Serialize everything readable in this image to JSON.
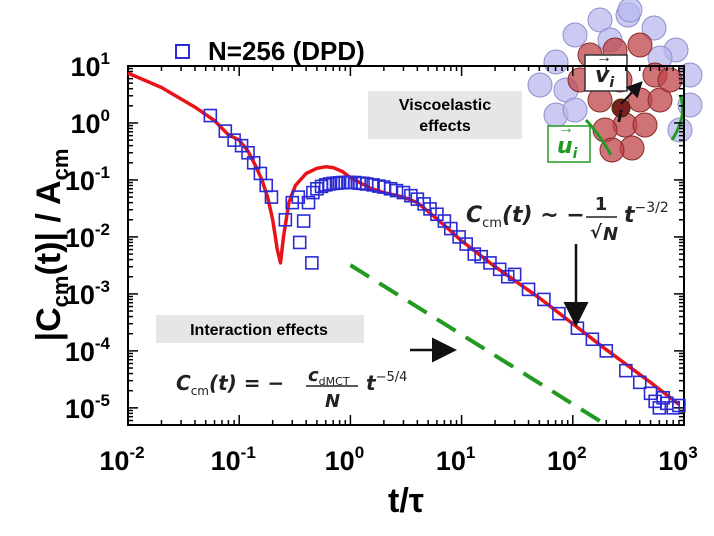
{
  "chart_data": {
    "type": "scatter",
    "x_scale": "log",
    "y_scale": "log",
    "xlim": [
      0.01,
      1000
    ],
    "ylim": [
      5e-06,
      10
    ],
    "x_ticks": [
      {
        "base": "10",
        "exp": "-2",
        "value": 0.01
      },
      {
        "base": "10",
        "exp": "-1",
        "value": 0.1
      },
      {
        "base": "10",
        "exp": "0",
        "value": 1
      },
      {
        "base": "10",
        "exp": "1",
        "value": 10
      },
      {
        "base": "10",
        "exp": "2",
        "value": 100
      },
      {
        "base": "10",
        "exp": "3",
        "value": 1000
      }
    ],
    "y_ticks": [
      {
        "base": "10",
        "exp": "1",
        "value": 10
      },
      {
        "base": "10",
        "exp": "0",
        "value": 1
      },
      {
        "base": "10",
        "exp": "-1",
        "value": 0.1
      },
      {
        "base": "10",
        "exp": "-2",
        "value": 0.01
      },
      {
        "base": "10",
        "exp": "-3",
        "value": 0.001
      },
      {
        "base": "10",
        "exp": "-4",
        "value": 0.0001
      },
      {
        "base": "10",
        "exp": "-5",
        "value": 1e-05
      }
    ],
    "xlabel": "t/τ",
    "ylabel": {
      "prefix": "|C",
      "sub": "cm",
      "mid": "(t)| / A",
      "sub2": "cm"
    },
    "legend": {
      "label": "N=256 (DPD)",
      "placement": "top-left"
    },
    "colors": {
      "markers": "#2a2ad6",
      "theory": "#e8141a",
      "slope": "#229922",
      "particles_red": "#c0444a",
      "particles_blue": "#b8b8ee"
    },
    "series": [
      {
        "name": "N=256 (DPD)",
        "marker": "open-square",
        "points": [
          [
            0.055,
            1.35
          ],
          [
            0.075,
            0.72
          ],
          [
            0.09,
            0.5
          ],
          [
            0.105,
            0.4
          ],
          [
            0.12,
            0.3
          ],
          [
            0.135,
            0.2
          ],
          [
            0.155,
            0.13
          ],
          [
            0.175,
            0.08
          ],
          [
            0.195,
            0.05
          ],
          [
            0.26,
            0.02
          ],
          [
            0.3,
            0.04
          ],
          [
            0.34,
            0.05
          ],
          [
            0.35,
            0.008
          ],
          [
            0.38,
            0.019
          ],
          [
            0.42,
            0.04
          ],
          [
            0.45,
            0.0035
          ],
          [
            0.46,
            0.06
          ],
          [
            0.5,
            0.07
          ],
          [
            0.55,
            0.077
          ],
          [
            0.6,
            0.082
          ],
          [
            0.65,
            0.085
          ],
          [
            0.7,
            0.087
          ],
          [
            0.75,
            0.088
          ],
          [
            0.8,
            0.089
          ],
          [
            0.85,
            0.09
          ],
          [
            0.9,
            0.09
          ],
          [
            0.95,
            0.091
          ],
          [
            1.0,
            0.09
          ],
          [
            1.1,
            0.09
          ],
          [
            1.2,
            0.088
          ],
          [
            1.3,
            0.087
          ],
          [
            1.4,
            0.085
          ],
          [
            1.6,
            0.082
          ],
          [
            1.8,
            0.078
          ],
          [
            2.0,
            0.075
          ],
          [
            2.3,
            0.07
          ],
          [
            2.6,
            0.065
          ],
          [
            3.0,
            0.06
          ],
          [
            3.5,
            0.053
          ],
          [
            4.0,
            0.046
          ],
          [
            4.6,
            0.038
          ],
          [
            5.2,
            0.031
          ],
          [
            6.0,
            0.025
          ],
          [
            7.0,
            0.019
          ],
          [
            8.0,
            0.014
          ],
          [
            9.5,
            0.01
          ],
          [
            11,
            0.0075
          ],
          [
            13,
            0.005
          ],
          [
            15,
            0.0045
          ],
          [
            18,
            0.0035
          ],
          [
            22,
            0.0027
          ],
          [
            26,
            0.002
          ],
          [
            30,
            0.0022
          ],
          [
            40,
            0.0012
          ],
          [
            55,
            0.0008
          ],
          [
            75,
            0.00045
          ],
          [
            110,
            0.00025
          ],
          [
            150,
            0.00016
          ],
          [
            200,
            0.0001
          ],
          [
            300,
            4.5e-05
          ],
          [
            400,
            2.8e-05
          ],
          [
            500,
            1.8e-05
          ],
          [
            550,
            1.3e-05
          ],
          [
            600,
            1e-05
          ],
          [
            650,
            1.5e-05
          ],
          [
            700,
            1.2e-05
          ],
          [
            800,
            1e-05
          ],
          [
            900,
            1.1e-05
          ]
        ]
      },
      {
        "name": "",
        "style": "solid red line",
        "points": [
          [
            0.01,
            7.5
          ],
          [
            0.02,
            4.2
          ],
          [
            0.04,
            1.9
          ],
          [
            0.06,
            1.1
          ],
          [
            0.08,
            0.62
          ],
          [
            0.1,
            0.5
          ],
          [
            0.12,
            0.32
          ],
          [
            0.14,
            0.18
          ],
          [
            0.16,
            0.1
          ],
          [
            0.18,
            0.05
          ],
          [
            0.2,
            0.02
          ],
          [
            0.22,
            0.006
          ],
          [
            0.235,
            0.0035
          ],
          [
            0.25,
            0.01
          ],
          [
            0.28,
            0.04
          ],
          [
            0.32,
            0.08
          ],
          [
            0.4,
            0.13
          ],
          [
            0.5,
            0.16
          ],
          [
            0.6,
            0.17
          ],
          [
            0.7,
            0.165
          ],
          [
            0.85,
            0.14
          ],
          [
            1.0,
            0.11
          ],
          [
            1.5,
            0.072
          ],
          [
            2.0,
            0.06
          ],
          [
            3.0,
            0.05
          ],
          [
            4.0,
            0.04
          ],
          [
            5.0,
            0.028
          ],
          [
            7.0,
            0.016
          ],
          [
            10,
            0.0085
          ],
          [
            20,
            0.003
          ],
          [
            50,
            0.00085
          ],
          [
            100,
            0.0003
          ],
          [
            200,
            0.000105
          ],
          [
            500,
            2.8e-05
          ],
          [
            900,
            1.15e-05
          ]
        ]
      },
      {
        "name": "",
        "style": "dashed green line",
        "points": [
          [
            1.0,
            0.0032
          ],
          [
            200,
            4.2e-06
          ]
        ]
      }
    ],
    "annotations": {
      "viscoelastic": "Viscoelastic effects",
      "interaction": "Interaction effects",
      "eq_upper": "C_cm(t) ~ −(1/√N) t^(−3/2)",
      "eq_lower": "C_cm(t) = −(c_dMCT / N) t^(−5/4)",
      "inset_v": "v_i",
      "inset_u": "u_i",
      "inset_i": "i"
    },
    "grid": false
  },
  "eq_upper": {
    "c": "C",
    "cm": "cm",
    "t": "(t) ~ −",
    "num": "1",
    "den": "N",
    "tt": "t",
    "exp": "−3/2"
  },
  "eq_lower": {
    "c": "C",
    "cm": "cm",
    "t": "(t) = −",
    "num_c": "c",
    "num_sub": "dMCT",
    "den": "N",
    "tt": "t",
    "exp": "−5/4"
  },
  "notes": {
    "viscoelastic_1": "Viscoelastic",
    "viscoelastic_2": "effects",
    "interaction": "Interaction effects"
  },
  "inset": {
    "v": "v",
    "v_sub": "i",
    "u": "u",
    "u_sub": "i",
    "i": "i"
  }
}
